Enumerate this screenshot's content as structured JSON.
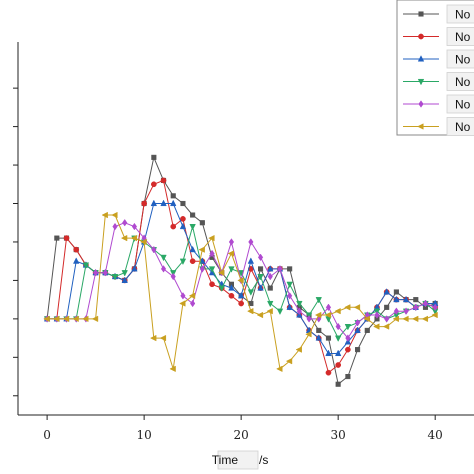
{
  "chart_data": {
    "type": "line",
    "xlabel": "Time",
    "xlabel_unit": "/s",
    "xlim": [
      -3,
      44
    ],
    "ylim": [
      -2.5,
      7.2
    ],
    "xticks": [
      0,
      10,
      20,
      30,
      40
    ],
    "yticks": [
      -2,
      -1,
      0,
      1,
      2,
      3,
      4,
      5,
      6
    ],
    "ytick_labels": [
      "",
      "",
      "",
      "",
      "",
      "",
      "",
      "",
      ""
    ],
    "legend_position": "top-right",
    "series": [
      {
        "name": "No",
        "color": "#555555",
        "marker": "square",
        "x": [
          0,
          1,
          2,
          3,
          4,
          5,
          6,
          7,
          8,
          9,
          10,
          11,
          12,
          13,
          14,
          15,
          16,
          17,
          18,
          19,
          20,
          21,
          22,
          23,
          24,
          25,
          26,
          27,
          28,
          29,
          30,
          31,
          32,
          33,
          34,
          35,
          36,
          37,
          38,
          39,
          40
        ],
        "y": [
          0,
          2.1,
          2.1,
          1.8,
          1.4,
          1.2,
          1.2,
          1.1,
          1.0,
          1.3,
          3.0,
          4.2,
          3.6,
          3.2,
          3.0,
          2.7,
          2.5,
          1.6,
          1.2,
          0.9,
          0.6,
          0.4,
          1.3,
          0.8,
          1.3,
          1.3,
          0.3,
          0.1,
          -0.3,
          -0.5,
          -1.7,
          -1.5,
          -0.8,
          -0.3,
          0.0,
          0.3,
          0.7,
          0.5,
          0.5,
          0.3,
          0.4
        ]
      },
      {
        "name": "No",
        "color": "#d42a2a",
        "marker": "circle",
        "x": [
          0,
          1,
          2,
          3,
          4,
          5,
          6,
          7,
          8,
          9,
          10,
          11,
          12,
          13,
          14,
          15,
          16,
          17,
          18,
          19,
          20,
          21,
          22,
          23,
          24,
          25,
          26,
          27,
          28,
          29,
          30,
          31,
          32,
          33,
          34,
          35,
          36,
          37,
          38,
          39,
          40
        ],
        "y": [
          0,
          0,
          2.1,
          1.8,
          1.4,
          1.2,
          1.2,
          1.1,
          1.0,
          1.3,
          3.0,
          3.5,
          3.6,
          2.4,
          2.6,
          1.5,
          1.5,
          0.9,
          0.8,
          0.6,
          0.4,
          1.3,
          0.8,
          1.3,
          1.3,
          0.3,
          0.1,
          -0.3,
          -0.5,
          -1.4,
          -1.2,
          -0.8,
          -0.3,
          0.0,
          0.3,
          0.7,
          0.5,
          0.5,
          0.3,
          0.4,
          0.3
        ]
      },
      {
        "name": "No",
        "color": "#2060c0",
        "marker": "triangle-up",
        "x": [
          0,
          1,
          2,
          3,
          4,
          5,
          6,
          7,
          8,
          9,
          10,
          11,
          12,
          13,
          14,
          15,
          16,
          17,
          18,
          19,
          20,
          21,
          22,
          23,
          24,
          25,
          26,
          27,
          28,
          29,
          30,
          31,
          32,
          33,
          34,
          35,
          36,
          37,
          38,
          39,
          40
        ],
        "y": [
          0,
          0,
          0,
          1.5,
          1.4,
          1.2,
          1.2,
          1.1,
          1.0,
          1.3,
          2.0,
          3.0,
          3.0,
          3.0,
          2.4,
          1.8,
          1.5,
          1.2,
          0.9,
          0.8,
          0.6,
          1.5,
          0.8,
          1.3,
          1.3,
          0.3,
          0.1,
          -0.3,
          -0.5,
          -0.9,
          -0.9,
          -0.6,
          -0.3,
          0.0,
          0.3,
          0.7,
          0.5,
          0.5,
          0.3,
          0.4,
          0.4
        ]
      },
      {
        "name": "No",
        "color": "#2aa866",
        "marker": "triangle-down",
        "x": [
          0,
          1,
          2,
          3,
          4,
          5,
          6,
          7,
          8,
          9,
          10,
          11,
          12,
          13,
          14,
          15,
          16,
          17,
          18,
          19,
          20,
          21,
          22,
          23,
          24,
          25,
          26,
          27,
          28,
          29,
          30,
          31,
          32,
          33,
          34,
          35,
          36,
          37,
          38,
          39,
          40
        ],
        "y": [
          0,
          0,
          0,
          0,
          1.4,
          1.2,
          1.2,
          1.1,
          1.2,
          2.1,
          2.0,
          1.8,
          1.6,
          1.2,
          1.5,
          2.4,
          1.3,
          1.3,
          0.8,
          1.3,
          1.2,
          0.7,
          1.1,
          0.4,
          0.2,
          0.9,
          0.4,
          0.1,
          0.5,
          0.0,
          -0.5,
          -0.2,
          -0.1,
          0.1,
          0.2,
          0.0,
          0.1,
          0.2,
          0.3,
          0.4,
          0.2
        ]
      },
      {
        "name": "No",
        "color": "#b04ad0",
        "marker": "diamond",
        "x": [
          0,
          1,
          2,
          3,
          4,
          5,
          6,
          7,
          8,
          9,
          10,
          11,
          12,
          13,
          14,
          15,
          16,
          17,
          18,
          19,
          20,
          21,
          22,
          23,
          24,
          25,
          26,
          27,
          28,
          29,
          30,
          31,
          32,
          33,
          34,
          35,
          36,
          37,
          38,
          39,
          40
        ],
        "y": [
          0,
          0,
          0,
          0,
          0,
          1.2,
          1.2,
          2.4,
          2.5,
          2.4,
          2.1,
          1.8,
          1.3,
          1.1,
          0.6,
          0.4,
          1.3,
          1.7,
          1.2,
          2.0,
          1.0,
          2.0,
          1.6,
          1.1,
          1.3,
          0.6,
          0.2,
          0.0,
          0.0,
          0.3,
          -0.2,
          -0.5,
          -0.1,
          0.1,
          0.1,
          0.0,
          0.2,
          0.2,
          0.3,
          0.4,
          0.3
        ]
      },
      {
        "name": "No",
        "color": "#c9a020",
        "marker": "triangle-left",
        "x": [
          0,
          1,
          2,
          3,
          4,
          5,
          6,
          7,
          8,
          9,
          10,
          11,
          12,
          13,
          14,
          15,
          16,
          17,
          18,
          19,
          20,
          21,
          22,
          23,
          24,
          25,
          26,
          27,
          28,
          29,
          30,
          31,
          32,
          33,
          34,
          35,
          36,
          37,
          38,
          39,
          40
        ],
        "y": [
          0,
          0,
          0,
          0,
          0,
          0,
          2.7,
          2.7,
          2.1,
          2.1,
          2.0,
          -0.5,
          -0.5,
          -1.3,
          0.4,
          0.6,
          1.8,
          2.1,
          1.2,
          1.7,
          1.0,
          0.2,
          0.1,
          0.2,
          -1.3,
          -1.1,
          -0.8,
          -0.4,
          0.1,
          0.1,
          0.2,
          0.3,
          0.3,
          0.0,
          -0.2,
          -0.2,
          0.0,
          0.0,
          0.0,
          0.0,
          0.1
        ]
      }
    ]
  }
}
